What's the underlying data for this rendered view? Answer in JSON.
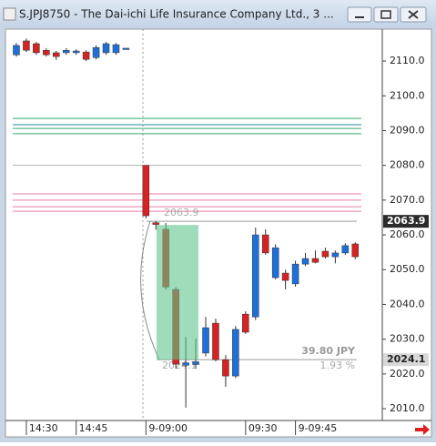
{
  "window": {
    "title": "S.JPJ8750 - The Dai-ichi Life Insurance Company Ltd., 3 ..."
  },
  "chart_data": {
    "type": "candlestick",
    "categories": [
      null,
      "14:30",
      null,
      null,
      null,
      null,
      "14:45",
      null,
      null,
      null,
      null,
      null,
      null,
      "9-09:00",
      null,
      null,
      null,
      null,
      null,
      null,
      null,
      null,
      null,
      "09:30",
      null,
      null,
      null,
      null,
      "9-09:45",
      null,
      null,
      null,
      null,
      null,
      null
    ],
    "open": [
      2111.8,
      2115.8,
      2115.0,
      2113.1,
      2112.4,
      2112.4,
      2112.4,
      2112.6,
      2111.0,
      2112.4,
      2112.4,
      2113.7,
      null,
      2080.0,
      2063.5,
      2061.6,
      2044.3,
      2022.5,
      2022.7,
      2026.0,
      2034.6,
      2024.1,
      2019.4,
      2037.2,
      2036.4,
      2060.0,
      2047.7,
      2049.0,
      2045.9,
      2051.6,
      2053.2,
      2055.3,
      2053.7,
      2054.8,
      2057.4
    ],
    "high": [
      2115.2,
      2116.5,
      2115.5,
      2113.7,
      2112.9,
      2113.7,
      2113.4,
      2113.1,
      2114.5,
      2115.5,
      2115.2,
      2113.7,
      null,
      2080.0,
      2064.0,
      2063.4,
      2045.0,
      2030.7,
      2030.2,
      2036.4,
      2035.9,
      2025.4,
      2033.8,
      2038.0,
      2062.1,
      2061.6,
      2057.3,
      2050.0,
      2052.6,
      2054.8,
      2055.5,
      2056.3,
      2055.5,
      2057.6,
      2057.9
    ],
    "low": [
      2111.3,
      2112.6,
      2111.8,
      2111.3,
      2110.3,
      2111.8,
      2111.8,
      2110.0,
      2110.5,
      2111.8,
      2111.8,
      2113.7,
      null,
      2064.7,
      2061.5,
      2044.3,
      2021.5,
      2010.3,
      2021.5,
      2025.0,
      2023.6,
      2016.3,
      2018.8,
      2031.5,
      2035.5,
      2054.3,
      2047.2,
      2044.3,
      2045.1,
      2051.0,
      2051.8,
      2053.2,
      2051.8,
      2054.3,
      2053.0
    ],
    "close": [
      2114.5,
      2113.1,
      2112.4,
      2111.8,
      2111.3,
      2113.1,
      2112.9,
      2110.5,
      2113.9,
      2115.0,
      2114.7,
      2113.7,
      null,
      2065.5,
      2063.0,
      2045.0,
      2022.8,
      2023.2,
      2023.5,
      2033.3,
      2024.1,
      2019.4,
      2032.8,
      2032.0,
      2060.0,
      2054.8,
      2056.3,
      2046.9,
      2051.6,
      2053.2,
      2052.1,
      2053.7,
      2054.8,
      2056.9,
      2053.7
    ],
    "up_color": "#1f6fd8",
    "down_color": "#d62222",
    "ylim": [
      2006.6,
      2118.4
    ],
    "yticks": [
      {
        "value": 2010,
        "label": "2010.0"
      },
      {
        "value": 2020,
        "label": "2020.0"
      },
      {
        "value": 2030,
        "label": "2030.0"
      },
      {
        "value": 2040,
        "label": "2040.0"
      },
      {
        "value": 2050,
        "label": "2050.0"
      },
      {
        "value": 2060,
        "label": "2060.0"
      },
      {
        "value": 2070,
        "label": "2070.0"
      },
      {
        "value": 2080,
        "label": "2080.0"
      },
      {
        "value": 2090,
        "label": "2090.0"
      },
      {
        "value": 2100,
        "label": "2100.0"
      },
      {
        "value": 2110,
        "label": "2110.0"
      }
    ],
    "levels": [
      {
        "value": 2093.5,
        "color": "#2eaa6a"
      },
      {
        "value": 2091.7,
        "color": "#2a8a9c"
      },
      {
        "value": 2090.6,
        "color": "#2eaa6a"
      },
      {
        "value": 2089.1,
        "color": "#2eaa6a"
      },
      {
        "value": 2080.0,
        "color": "#b0b0b0"
      },
      {
        "value": 2071.8,
        "color": "#e67aa9"
      },
      {
        "value": 2070.0,
        "color": "#e67aa9"
      },
      {
        "value": 2068.1,
        "color": "#e67aa9"
      },
      {
        "value": 2066.8,
        "color": "#e67aa9"
      }
    ],
    "measure": {
      "high": 2063.9,
      "low": 2024.1,
      "change_label": "39.80 JPY",
      "pct_label": "1.93 %",
      "color": "#5fc48a"
    }
  }
}
